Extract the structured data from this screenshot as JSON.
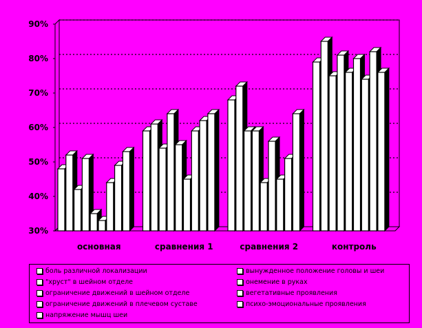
{
  "chart_data": {
    "type": "bar",
    "categories": [
      "основная",
      "сравнения 1",
      "сравнения 2",
      "контроль"
    ],
    "ylim": [
      30,
      90
    ],
    "yticks": [
      "30%",
      "40%",
      "50%",
      "60%",
      "70%",
      "80%",
      "90%"
    ],
    "grid": true,
    "legend_position": "bottom",
    "series": [
      {
        "name": "боль различной локализации",
        "values": [
          48,
          59,
          68,
          79
        ]
      },
      {
        "name": "\"хруст\" в шейном отделе",
        "values": [
          52,
          61,
          72,
          85
        ]
      },
      {
        "name": "ограничение движений в шейном отделе",
        "values": [
          42,
          54,
          59,
          75
        ]
      },
      {
        "name": "ограничение движений в плечевом суставе",
        "values": [
          51,
          64,
          59,
          81
        ]
      },
      {
        "name": "напряжение мышц шеи",
        "values": [
          35,
          55,
          44,
          76
        ]
      },
      {
        "name": "вынужденное положение головы и шеи",
        "values": [
          33,
          45,
          56,
          80
        ]
      },
      {
        "name": "онемение в руках",
        "values": [
          44,
          59,
          45,
          74
        ]
      },
      {
        "name": "вегетативные проявления",
        "values": [
          49,
          62,
          51,
          82
        ]
      },
      {
        "name": "психо-эмоциональные проявления",
        "values": [
          53,
          64,
          64,
          76
        ]
      }
    ]
  },
  "colors": {
    "background": "#FF00FF",
    "bar_fill": "#FFFFFF",
    "outline": "#000000"
  }
}
